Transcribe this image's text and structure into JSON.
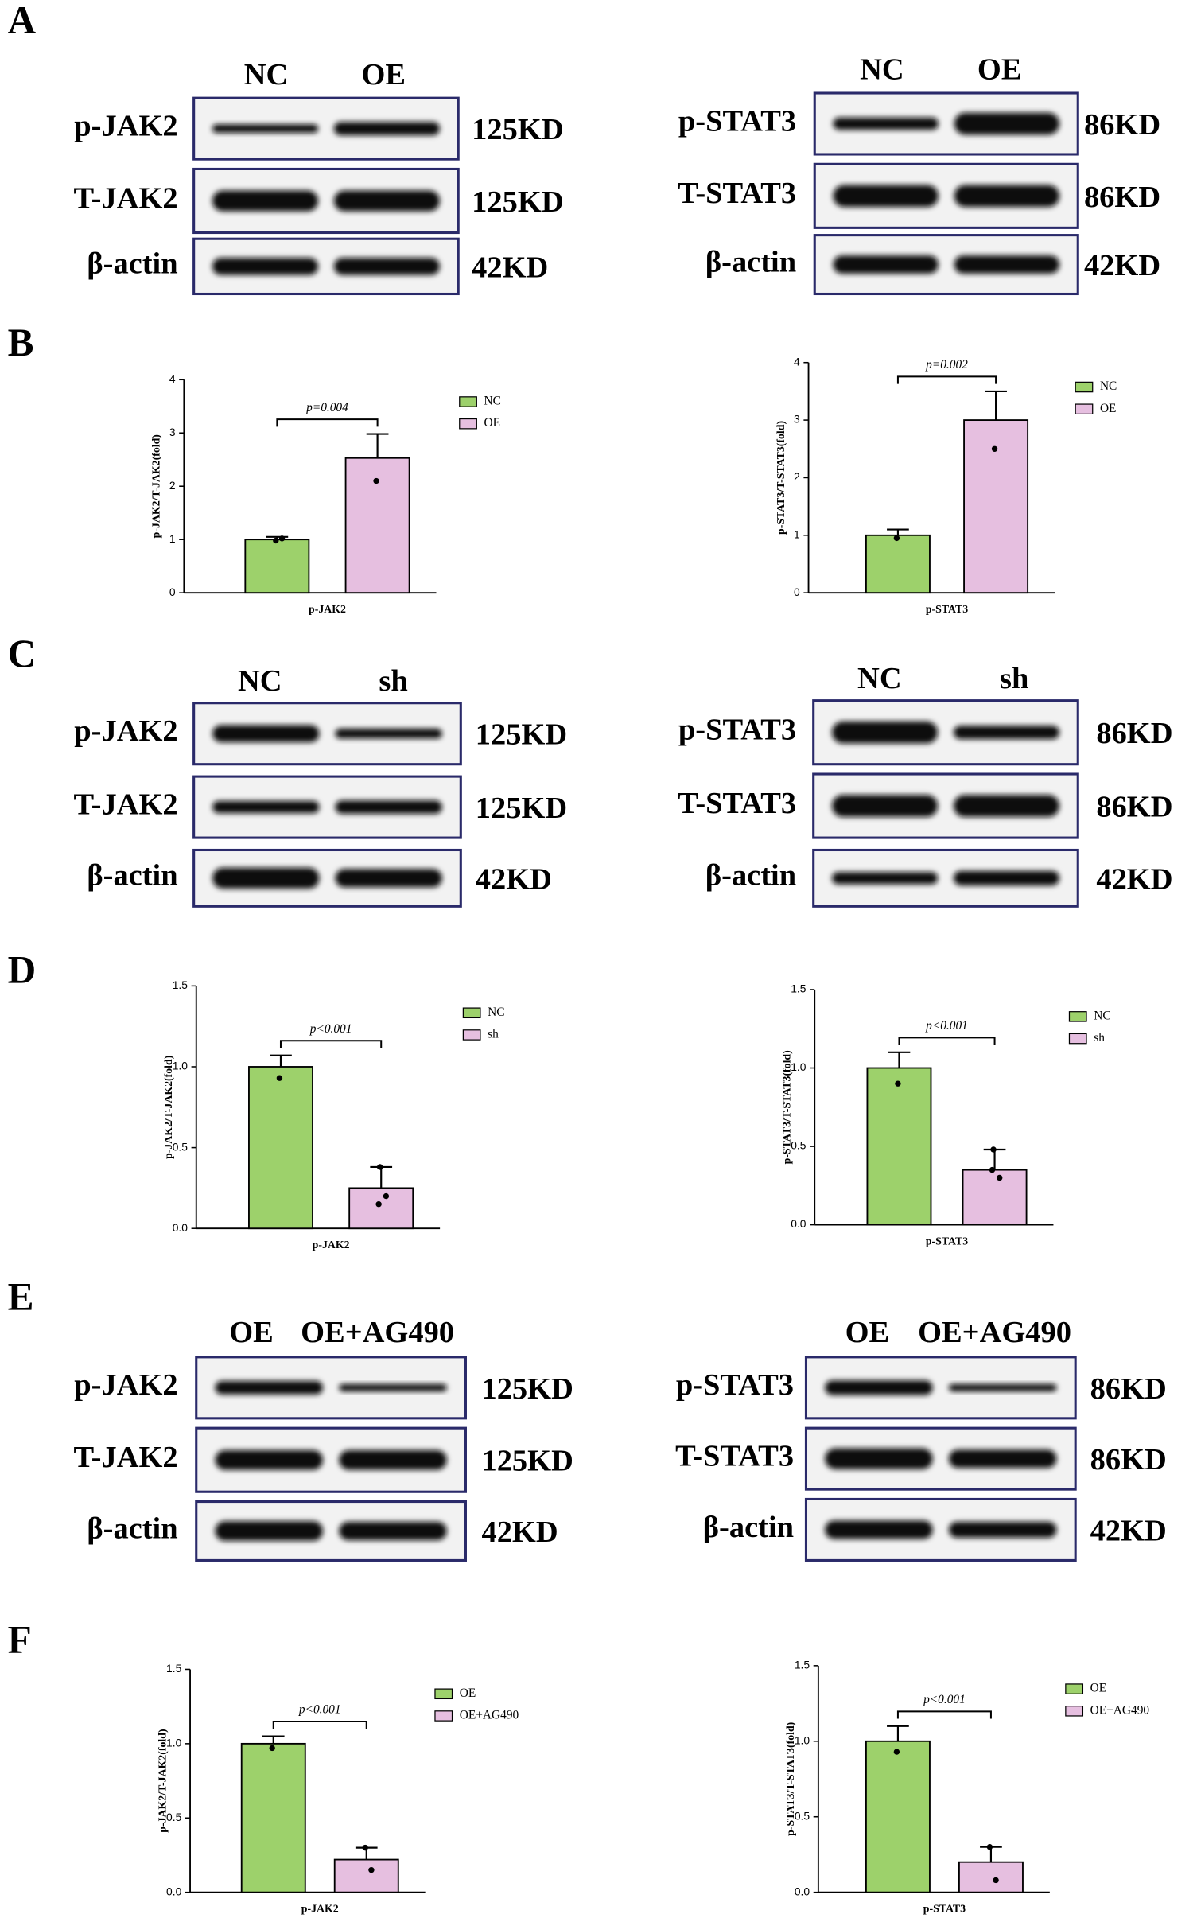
{
  "panels": [
    "A",
    "B",
    "C",
    "D",
    "E",
    "F"
  ],
  "blots": [
    {
      "columns": [
        "NC",
        "OE"
      ],
      "rows": [
        {
          "label": "p-JAK2",
          "size": "125KD"
        },
        {
          "label": "T-JAK2",
          "size": "125KD"
        },
        {
          "label": "β-actin",
          "size": "42KD"
        }
      ]
    },
    {
      "columns": [
        "NC",
        "OE"
      ],
      "rows": [
        {
          "label": "p-STAT3",
          "size": "86KD"
        },
        {
          "label": "T-STAT3",
          "size": "86KD"
        },
        {
          "label": "β-actin",
          "size": "42KD"
        }
      ]
    },
    {
      "columns": [
        "NC",
        "sh"
      ],
      "rows": [
        {
          "label": "p-JAK2",
          "size": "125KD"
        },
        {
          "label": "T-JAK2",
          "size": "125KD"
        },
        {
          "label": "β-actin",
          "size": "42KD"
        }
      ]
    },
    {
      "columns": [
        "NC",
        "sh"
      ],
      "rows": [
        {
          "label": "p-STAT3",
          "size": "86KD"
        },
        {
          "label": "T-STAT3",
          "size": "86KD"
        },
        {
          "label": "β-actin",
          "size": "42KD"
        }
      ]
    },
    {
      "columns": [
        "OE",
        "OE+AG490"
      ],
      "rows": [
        {
          "label": "p-JAK2",
          "size": "125KD"
        },
        {
          "label": "T-JAK2",
          "size": "125KD"
        },
        {
          "label": "β-actin",
          "size": "42KD"
        }
      ]
    },
    {
      "columns": [
        "OE",
        "OE+AG490"
      ],
      "rows": [
        {
          "label": "p-STAT3",
          "size": "86KD"
        },
        {
          "label": "T-STAT3",
          "size": "86KD"
        },
        {
          "label": "β-actin",
          "size": "42KD"
        }
      ]
    }
  ],
  "chart_data": [
    {
      "type": "bar",
      "categories": [
        "p-JAK2"
      ],
      "ylabel": "p-JAK2/T-JAK2(fold)",
      "annotation": "p=0.004",
      "ylim": [
        0,
        4
      ],
      "yticks": [
        0,
        1,
        2,
        3,
        4
      ],
      "series": [
        {
          "name": "NC",
          "color": "#9dd16b",
          "values": [
            1.0
          ],
          "errors": [
            0.05
          ],
          "points": [
            [
              0.98,
              1.02
            ]
          ]
        },
        {
          "name": "OE",
          "color": "#e6bfe0",
          "values": [
            2.53
          ],
          "errors": [
            0.45
          ],
          "points": [
            [
              2.1
            ]
          ]
        }
      ]
    },
    {
      "type": "bar",
      "categories": [
        "p-STAT3"
      ],
      "ylabel": "p-STAT3/T-STAT3(fold)",
      "annotation": "p=0.002",
      "ylim": [
        0,
        4
      ],
      "yticks": [
        0,
        1,
        2,
        3,
        4
      ],
      "series": [
        {
          "name": "NC",
          "color": "#9dd16b",
          "values": [
            1.0
          ],
          "errors": [
            0.1
          ],
          "points": [
            [
              0.95
            ]
          ]
        },
        {
          "name": "OE",
          "color": "#e6bfe0",
          "values": [
            3.0
          ],
          "errors": [
            0.5
          ],
          "points": [
            [
              2.5
            ]
          ]
        }
      ]
    },
    {
      "type": "bar",
      "categories": [
        "p-JAK2"
      ],
      "ylabel": "p-JAK2/T-JAK2(fold)",
      "annotation": "p<0.001",
      "ylim": [
        0,
        1.5
      ],
      "yticks": [
        {
          "value": 0,
          "label": "0.0"
        },
        0.5,
        {
          "value": 1,
          "label": "1.0"
        },
        1.5
      ],
      "series": [
        {
          "name": "NC",
          "color": "#9dd16b",
          "values": [
            1.0
          ],
          "errors": [
            0.07
          ],
          "points": [
            [
              0.93
            ]
          ]
        },
        {
          "name": "sh",
          "color": "#e6bfe0",
          "values": [
            0.25
          ],
          "errors": [
            0.13
          ],
          "points": [
            [
              0.38,
              0.2,
              0.15
            ]
          ]
        }
      ]
    },
    {
      "type": "bar",
      "categories": [
        "p-STAT3"
      ],
      "ylabel": "p-STAT3/T-STAT3(fold)",
      "annotation": "p<0.001",
      "ylim": [
        0,
        1.5
      ],
      "yticks": [
        {
          "value": 0,
          "label": "0.0"
        },
        0.5,
        {
          "value": 1,
          "label": "1.0"
        },
        1.5
      ],
      "series": [
        {
          "name": "NC",
          "color": "#9dd16b",
          "values": [
            1.0
          ],
          "errors": [
            0.1
          ],
          "points": [
            [
              0.9
            ]
          ]
        },
        {
          "name": "sh",
          "color": "#e6bfe0",
          "values": [
            0.35
          ],
          "errors": [
            0.13
          ],
          "points": [
            [
              0.48,
              0.3,
              0.35
            ]
          ]
        }
      ]
    },
    {
      "type": "bar",
      "categories": [
        "p-JAK2"
      ],
      "ylabel": "p-JAK2/T-JAK2(fold)",
      "annotation": "p<0.001",
      "ylim": [
        0,
        1.5
      ],
      "yticks": [
        {
          "value": 0,
          "label": "0.0"
        },
        0.5,
        {
          "value": 1,
          "label": "1.0"
        },
        1.5
      ],
      "series": [
        {
          "name": "OE",
          "color": "#9dd16b",
          "values": [
            1.0
          ],
          "errors": [
            0.05
          ],
          "points": [
            [
              0.97
            ]
          ]
        },
        {
          "name": "OE+AG490",
          "color": "#e6bfe0",
          "values": [
            0.22
          ],
          "errors": [
            0.08
          ],
          "points": [
            [
              0.3,
              0.15
            ]
          ]
        }
      ]
    },
    {
      "type": "bar",
      "categories": [
        "p-STAT3"
      ],
      "ylabel": "p-STAT3/T-STAT3(fold)",
      "annotation": "p<0.001",
      "ylim": [
        0,
        1.5
      ],
      "yticks": [
        {
          "value": 0,
          "label": "0.0"
        },
        0.5,
        {
          "value": 1,
          "label": "1.0"
        },
        1.5
      ],
      "series": [
        {
          "name": "OE",
          "color": "#9dd16b",
          "values": [
            1.0
          ],
          "errors": [
            0.1
          ],
          "points": [
            [
              0.93
            ]
          ]
        },
        {
          "name": "OE+AG490",
          "color": "#e6bfe0",
          "values": [
            0.2
          ],
          "errors": [
            0.1
          ],
          "points": [
            [
              0.3,
              0.08
            ]
          ]
        }
      ]
    }
  ]
}
